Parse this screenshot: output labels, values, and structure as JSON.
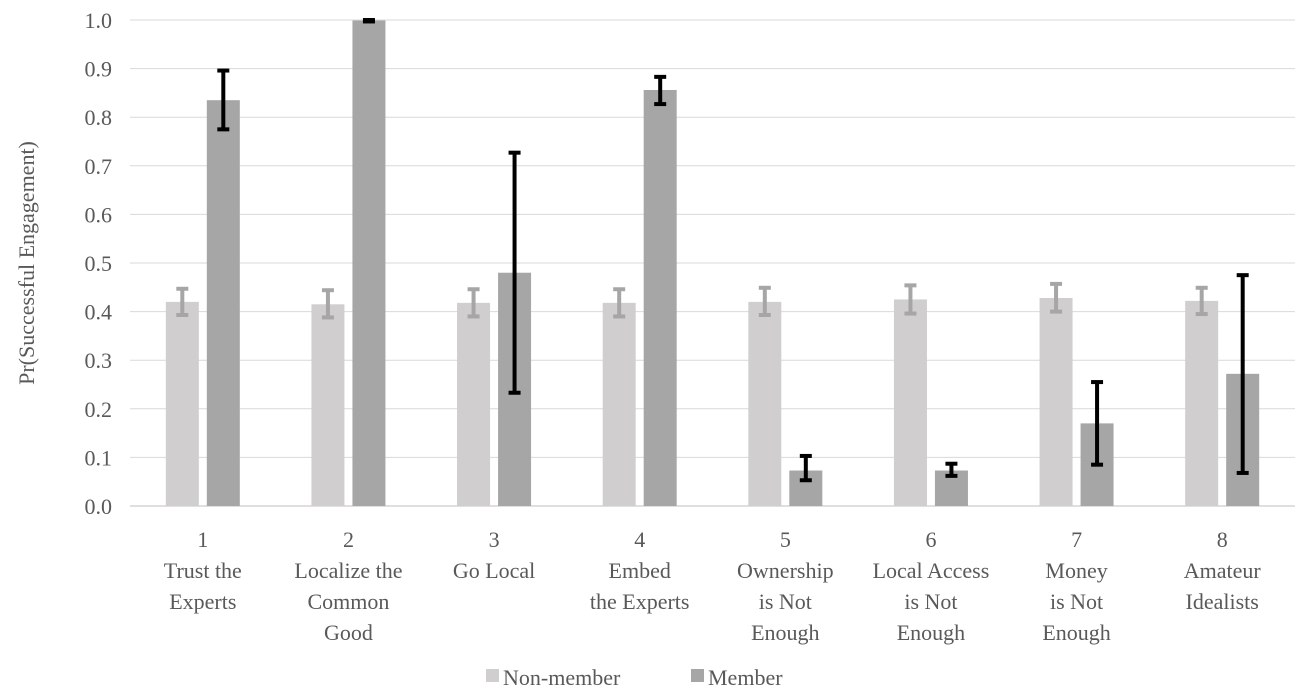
{
  "chart_data": {
    "type": "bar",
    "ylabel": "Pr(Successful Engagement)",
    "xlabel": "",
    "title": "",
    "ylim": [
      0.0,
      1.0
    ],
    "yticks": [
      "0.0",
      "0.1",
      "0.2",
      "0.3",
      "0.4",
      "0.5",
      "0.6",
      "0.7",
      "0.8",
      "0.9",
      "1.0"
    ],
    "grid": true,
    "legend_position": "bottom",
    "categories": [
      [
        "1",
        "Trust the",
        "Experts"
      ],
      [
        "2",
        "Localize the",
        "Common",
        "Good"
      ],
      [
        "3",
        "Go Local"
      ],
      [
        "4",
        "Embed",
        "the Experts"
      ],
      [
        "5",
        "Ownership",
        "is Not",
        "Enough"
      ],
      [
        "6",
        "Local Access",
        "is Not",
        "Enough"
      ],
      [
        "7",
        "Money",
        "is Not",
        "Enough"
      ],
      [
        "8",
        "Amateur",
        "Idealists"
      ]
    ],
    "series": [
      {
        "name": "Non-member",
        "color": "#d0cece",
        "error_color": "#a6a6a6",
        "values": [
          0.42,
          0.415,
          0.418,
          0.418,
          0.42,
          0.425,
          0.428,
          0.422
        ],
        "err_low": [
          0.393,
          0.388,
          0.39,
          0.39,
          0.393,
          0.396,
          0.4,
          0.395
        ],
        "err_high": [
          0.447,
          0.444,
          0.446,
          0.446,
          0.449,
          0.454,
          0.457,
          0.449
        ]
      },
      {
        "name": "Member",
        "color": "#a6a6a6",
        "error_color": "#000000",
        "values": [
          0.835,
          0.999,
          0.48,
          0.856,
          0.073,
          0.073,
          0.17,
          0.272
        ],
        "err_low": [
          0.775,
          0.997,
          0.233,
          0.827,
          0.053,
          0.062,
          0.085,
          0.068
        ],
        "err_high": [
          0.896,
          1.0,
          0.727,
          0.883,
          0.103,
          0.087,
          0.255,
          0.475
        ]
      }
    ]
  }
}
